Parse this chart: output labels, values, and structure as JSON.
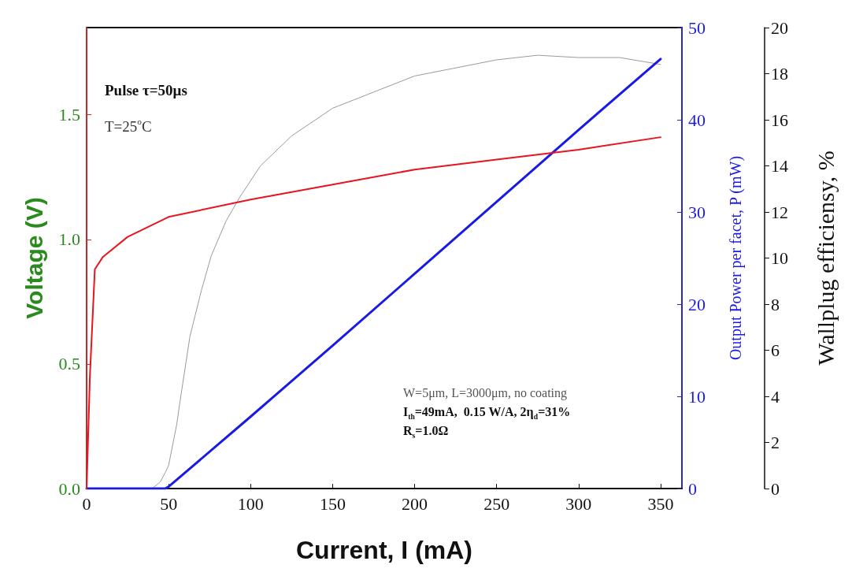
{
  "chart_data": {
    "type": "line",
    "xlabel": "Current, I (mA)",
    "ylabel": "Voltage (V)",
    "y2label": "Output Power per facet, P (mW)",
    "y3label": "Wallplug efficiensy, %",
    "xlim": [
      0,
      363
    ],
    "xticks": [
      0,
      50,
      100,
      150,
      200,
      250,
      300,
      350
    ],
    "ylim": [
      0,
      1.85
    ],
    "yticks": [
      {
        "value": 0,
        "label": "0.0"
      },
      {
        "value": 0.5,
        "label": "0.5"
      },
      {
        "value": 1,
        "label": "1.0"
      },
      {
        "value": 1.5,
        "label": "1.5"
      }
    ],
    "y2lim": [
      0,
      50
    ],
    "y2ticks": [
      0,
      10,
      20,
      30,
      40,
      50
    ],
    "y3lim": [
      0,
      20
    ],
    "y3ticks": [
      0,
      2,
      4,
      6,
      8,
      10,
      12,
      14,
      16,
      18,
      20
    ],
    "grid": false,
    "marker": "none",
    "line_style": "solid",
    "series": [
      {
        "color": "#e8141e",
        "x": [
          0,
          2,
          5,
          10,
          25,
          50,
          100,
          150,
          200,
          250,
          300,
          350
        ],
        "values": [
          0,
          0.45,
          0.88,
          0.93,
          1.01,
          1.09,
          1.16,
          1.22,
          1.28,
          1.32,
          1.36,
          1.41
        ]
      },
      {
        "color": "#1a1ae6",
        "axis": "y2",
        "x": [
          0,
          48,
          50,
          100,
          150,
          200,
          250,
          300,
          350
        ],
        "values": [
          0,
          0,
          0.2,
          7.8,
          15.5,
          23.3,
          31.1,
          38.9,
          46.6
        ]
      },
      {
        "color": "#9a9a9a",
        "axis": "y3",
        "x": [
          0,
          40,
          45,
          48,
          50,
          55,
          57,
          63,
          70,
          76,
          85,
          93,
          106,
          125,
          150,
          200,
          250,
          275,
          300,
          325,
          350
        ],
        "values": [
          0,
          0,
          0.3,
          0.7,
          1,
          2.8,
          3.8,
          6.6,
          8.6,
          10.1,
          11.6,
          12.6,
          14,
          15.3,
          16.5,
          17.9,
          18.6,
          18.8,
          18.7,
          18.7,
          18.4
        ]
      }
    ],
    "annotations": [
      "Pulse τ=50μs",
      "T=25$^{o}$C",
      "W=5μm, L=3000μm, no coating",
      "I$_{th}$=49mA,  0.15 W/A, 2η$_{d}$=31%",
      "R$_{s}$=1.0Ω"
    ]
  }
}
